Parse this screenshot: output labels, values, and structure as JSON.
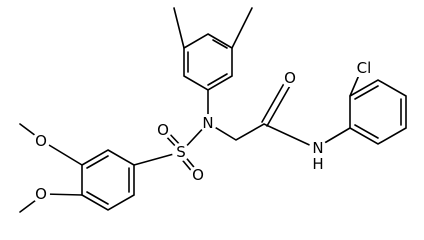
{
  "atoms": {
    "methoxy_top_o": "O",
    "methoxy_bottom_o": "O",
    "sulfur": "S",
    "sulfonyl_o_top": "O",
    "sulfonyl_o_bottom": "O",
    "amine_n": "N",
    "carbonyl_o": "O",
    "amide_n": "N",
    "amide_h": "H",
    "chlorine": "Cl"
  }
}
